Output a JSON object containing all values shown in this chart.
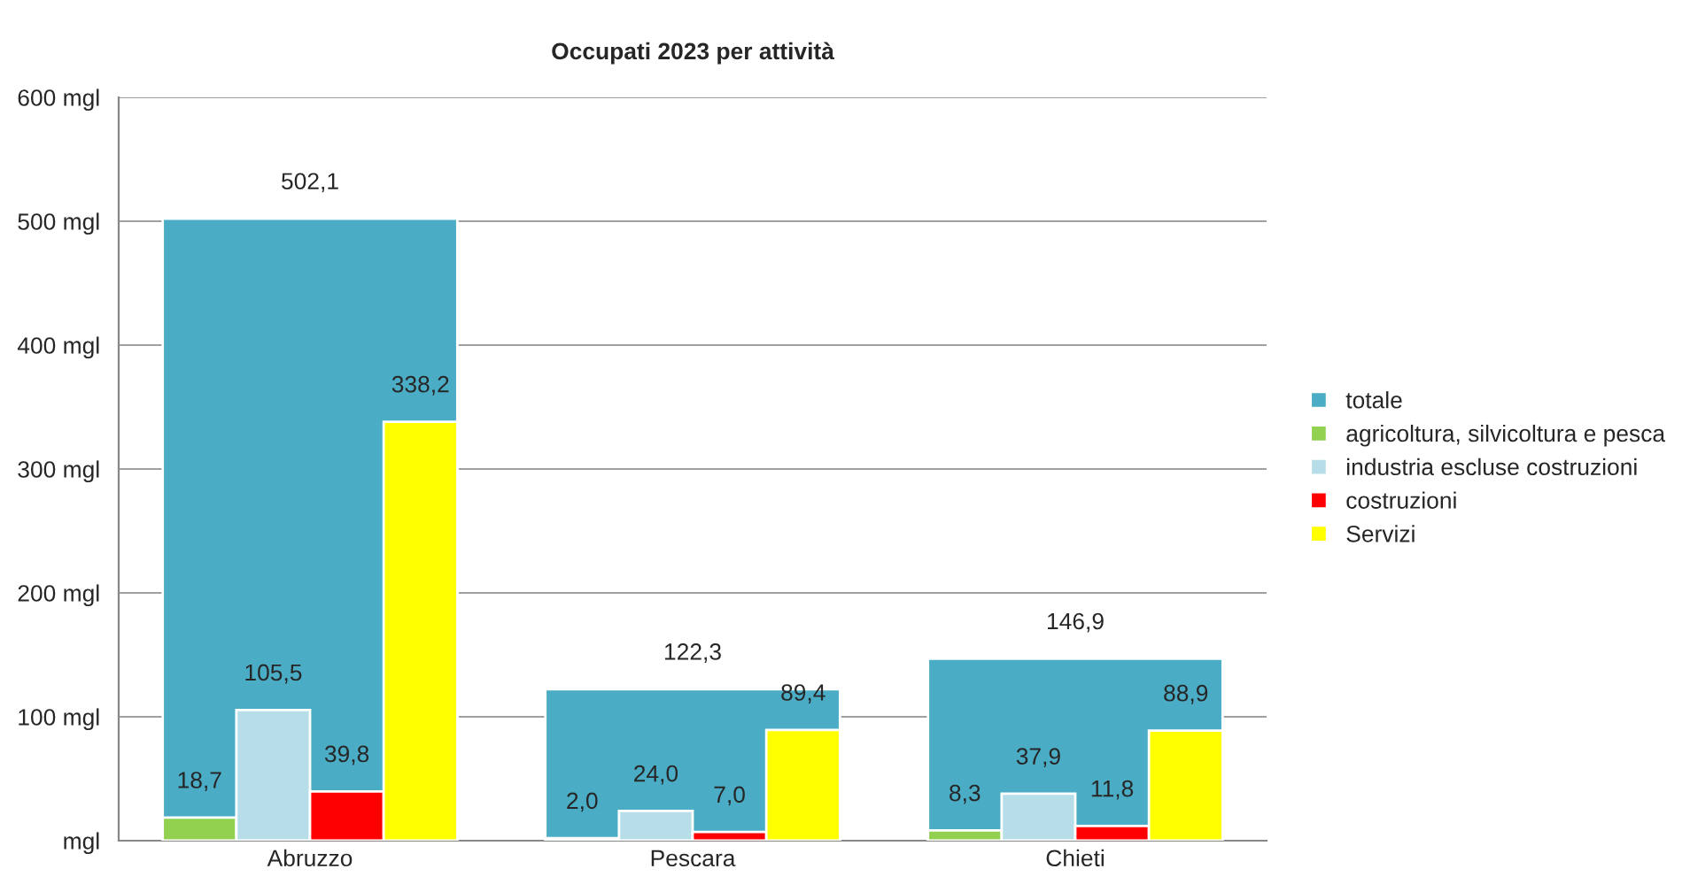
{
  "chart_data": {
    "type": "bar",
    "title": "Occupati 2023 per attività",
    "categories": [
      "Abruzzo",
      "Pescara",
      "Chieti"
    ],
    "series": [
      {
        "name": "totale",
        "color": "#4bacc6",
        "values": [
          502.1,
          122.3,
          146.9
        ],
        "value_labels": [
          "502,1",
          "122,3",
          "146,9"
        ]
      },
      {
        "name": "agricoltura, silvicoltura e pesca",
        "color": "#92d050",
        "values": [
          18.7,
          2.0,
          8.3
        ],
        "value_labels": [
          "18,7",
          "2,0",
          "8,3"
        ]
      },
      {
        "name": "industria escluse costruzioni",
        "color": "#b7dee8",
        "values": [
          105.5,
          24.0,
          37.9
        ],
        "value_labels": [
          "105,5",
          "24,0",
          "37,9"
        ]
      },
      {
        "name": "costruzioni",
        "color": "#ff0000",
        "values": [
          39.8,
          7.0,
          11.8
        ],
        "value_labels": [
          "39,8",
          "7,0",
          "11,8"
        ]
      },
      {
        "name": "Servizi",
        "color": "#ffff00",
        "values": [
          338.2,
          89.4,
          88.9
        ],
        "value_labels": [
          "338,2",
          "89,4",
          "88,9"
        ]
      }
    ],
    "ylim": [
      0,
      600
    ],
    "yticks": [
      {
        "value": 0,
        "label": "mgl"
      },
      {
        "value": 100,
        "label": "100 mgl"
      },
      {
        "value": 200,
        "label": "200 mgl"
      },
      {
        "value": 300,
        "label": "300 mgl"
      },
      {
        "value": 400,
        "label": "400 mgl"
      },
      {
        "value": 500,
        "label": "500 mgl"
      },
      {
        "value": 600,
        "label": "600 mgl"
      }
    ],
    "grid": "y",
    "legend": "right"
  }
}
